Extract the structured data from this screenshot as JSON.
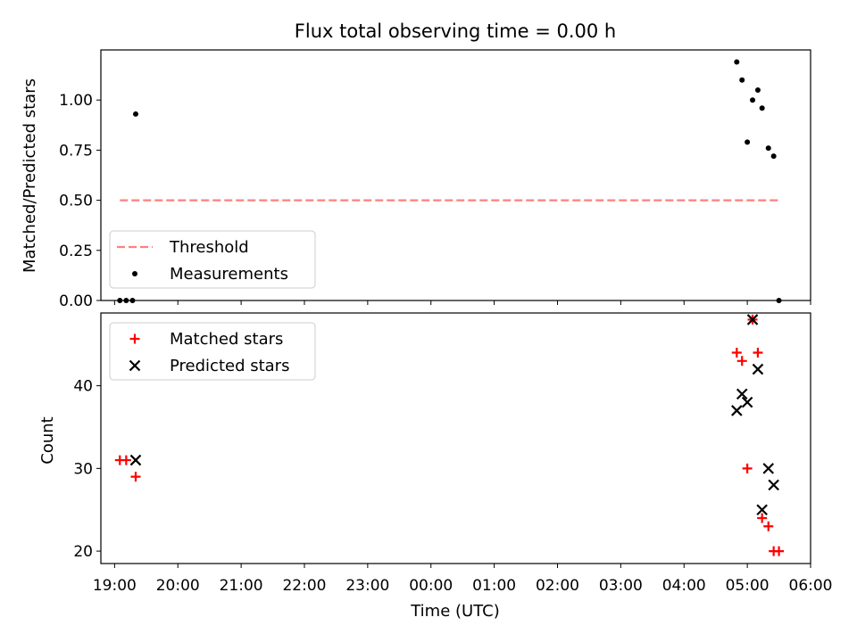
{
  "chart_data": [
    {
      "type": "scatter",
      "title": "Flux total observing time = 0.00 h",
      "ylabel": "Matched/Predicted stars",
      "xlabel": "",
      "ylim": [
        0.0,
        1.25
      ],
      "yticks": [
        "0.00",
        "0.25",
        "0.50",
        "0.75",
        "1.00"
      ],
      "legend_position": "lower-left",
      "series": [
        {
          "name": "Threshold",
          "style": "dashed-line",
          "color": "#ff7f7f",
          "x": [
            "19:05",
            "05:30"
          ],
          "y": [
            0.5,
            0.5
          ]
        },
        {
          "name": "Measurements",
          "style": "dot",
          "color": "#000000",
          "x": [
            "19:05",
            "19:11",
            "19:17",
            "19:20",
            "04:50",
            "04:55",
            "05:00",
            "05:05",
            "05:10",
            "05:14",
            "05:20",
            "05:25",
            "05:30"
          ],
          "y": [
            0.0,
            0.0,
            0.0,
            0.93,
            1.19,
            1.1,
            0.79,
            1.0,
            1.05,
            0.96,
            0.76,
            0.72,
            0.0
          ]
        }
      ]
    },
    {
      "type": "scatter",
      "title": "",
      "ylabel": "Count",
      "xlabel": "Time (UTC)",
      "ylim": [
        18.5,
        48.8
      ],
      "yticks": [
        "20",
        "30",
        "40"
      ],
      "xticks": [
        "19:00",
        "20:00",
        "21:00",
        "22:00",
        "23:00",
        "00:00",
        "01:00",
        "02:00",
        "03:00",
        "04:00",
        "05:00",
        "06:00"
      ],
      "legend_position": "upper-left",
      "series": [
        {
          "name": "Matched stars",
          "marker": "plus",
          "color": "#ff0000",
          "x": [
            "19:05",
            "19:11",
            "19:20",
            "04:50",
            "04:55",
            "05:00",
            "05:05",
            "05:10",
            "05:14",
            "05:20",
            "05:25",
            "05:30"
          ],
          "y": [
            31,
            31,
            29,
            44,
            43,
            30,
            48,
            44,
            24,
            23,
            20,
            20
          ]
        },
        {
          "name": "Predicted stars",
          "marker": "x",
          "color": "#000000",
          "x": [
            "19:20",
            "04:50",
            "04:55",
            "05:00",
            "05:05",
            "05:10",
            "05:14",
            "05:20",
            "05:25"
          ],
          "y": [
            31,
            37,
            39,
            38,
            48,
            42,
            25,
            30,
            28
          ]
        }
      ]
    }
  ]
}
